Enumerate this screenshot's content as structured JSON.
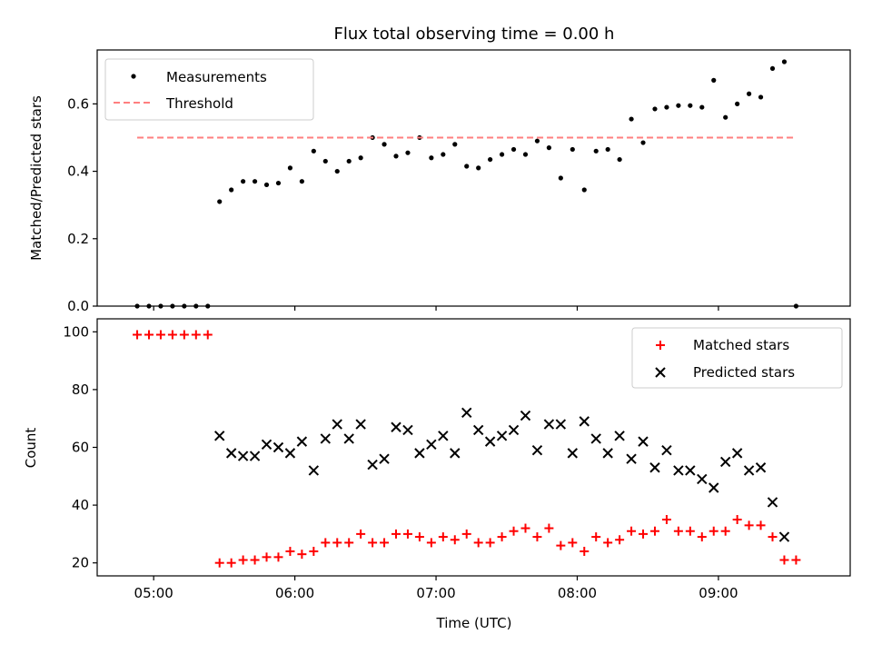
{
  "chart_data": [
    {
      "type": "scatter",
      "title": "Flux total observing time = 0.00 h",
      "xlabel": "",
      "ylabel": "Matched/Predicted stars",
      "ylim": [
        0,
        0.76
      ],
      "yticks": [
        0.0,
        0.2,
        0.4,
        0.6
      ],
      "ytick_labels": [
        "0.0",
        "0.2",
        "0.4",
        "0.6"
      ],
      "xlim": [
        "04:36",
        "09:56"
      ],
      "xticks": [
        "05:00",
        "06:00",
        "07:00",
        "08:00",
        "09:00"
      ],
      "legend_position": "upper-left",
      "grid": false,
      "series": [
        {
          "name": "Measurements",
          "marker": "dot",
          "color": "#000000",
          "x": [
            "04:53",
            "04:58",
            "05:03",
            "05:08",
            "05:13",
            "05:18",
            "05:23",
            "05:28",
            "05:33",
            "05:38",
            "05:43",
            "05:48",
            "05:53",
            "05:58",
            "06:03",
            "06:08",
            "06:13",
            "06:18",
            "06:23",
            "06:28",
            "06:33",
            "06:38",
            "06:43",
            "06:48",
            "06:53",
            "06:58",
            "07:03",
            "07:08",
            "07:13",
            "07:18",
            "07:23",
            "07:28",
            "07:33",
            "07:38",
            "07:43",
            "07:48",
            "07:53",
            "07:58",
            "08:03",
            "08:08",
            "08:13",
            "08:18",
            "08:23",
            "08:28",
            "08:33",
            "08:38",
            "08:43",
            "08:48",
            "08:53",
            "08:58",
            "09:03",
            "09:08",
            "09:13",
            "09:18",
            "09:23",
            "09:28",
            "09:33"
          ],
          "y": [
            0.0,
            0.0,
            0.0,
            0.0,
            0.0,
            0.0,
            0.0,
            0.31,
            0.345,
            0.37,
            0.37,
            0.36,
            0.365,
            0.41,
            0.37,
            0.46,
            0.43,
            0.4,
            0.43,
            0.44,
            0.5,
            0.48,
            0.445,
            0.455,
            0.5,
            0.44,
            0.45,
            0.48,
            0.415,
            0.41,
            0.435,
            0.45,
            0.465,
            0.45,
            0.49,
            0.47,
            0.38,
            0.465,
            0.345,
            0.46,
            0.465,
            0.435,
            0.555,
            0.485,
            0.585,
            0.59,
            0.595,
            0.595,
            0.59,
            0.67,
            0.56,
            0.6,
            0.63,
            0.62,
            0.705,
            0.725,
            0.0
          ]
        },
        {
          "name": "Threshold",
          "marker": "dashed-line",
          "color": "#ff7f7f",
          "x": [
            "04:53",
            "09:33"
          ],
          "y": [
            0.5,
            0.5
          ]
        }
      ]
    },
    {
      "type": "scatter",
      "title": "",
      "xlabel": "Time (UTC)",
      "ylabel": "Count",
      "ylim": [
        15.5,
        104.5
      ],
      "yticks": [
        20,
        40,
        60,
        80,
        100
      ],
      "ytick_labels": [
        "20",
        "40",
        "60",
        "80",
        "100"
      ],
      "xlim": [
        "04:36",
        "09:56"
      ],
      "xticks": [
        "05:00",
        "06:00",
        "07:00",
        "08:00",
        "09:00"
      ],
      "xtick_labels": [
        "05:00",
        "06:00",
        "07:00",
        "08:00",
        "09:00"
      ],
      "legend_position": "upper-right",
      "grid": false,
      "series": [
        {
          "name": "Matched stars",
          "marker": "plus",
          "color": "#ff0000",
          "x": [
            "04:53",
            "04:58",
            "05:03",
            "05:08",
            "05:13",
            "05:18",
            "05:23",
            "05:28",
            "05:33",
            "05:38",
            "05:43",
            "05:48",
            "05:53",
            "05:58",
            "06:03",
            "06:08",
            "06:13",
            "06:18",
            "06:23",
            "06:28",
            "06:33",
            "06:38",
            "06:43",
            "06:48",
            "06:53",
            "06:58",
            "07:03",
            "07:08",
            "07:13",
            "07:18",
            "07:23",
            "07:28",
            "07:33",
            "07:38",
            "07:43",
            "07:48",
            "07:53",
            "07:58",
            "08:03",
            "08:08",
            "08:13",
            "08:18",
            "08:23",
            "08:28",
            "08:33",
            "08:38",
            "08:43",
            "08:48",
            "08:53",
            "08:58",
            "09:03",
            "09:08",
            "09:13",
            "09:18",
            "09:23",
            "09:28",
            "09:33"
          ],
          "y": [
            99,
            99,
            99,
            99,
            99,
            99,
            99,
            20,
            20,
            21,
            21,
            22,
            22,
            24,
            23,
            24,
            27,
            27,
            27,
            30,
            27,
            27,
            30,
            30,
            29,
            27,
            29,
            28,
            30,
            27,
            27,
            29,
            31,
            32,
            29,
            32,
            26,
            27,
            24,
            29,
            27,
            28,
            31,
            30,
            31,
            35,
            31,
            31,
            29,
            31,
            31,
            35,
            33,
            33,
            29,
            21,
            21
          ]
        },
        {
          "name": "Predicted stars",
          "marker": "x",
          "color": "#000000",
          "x": [
            "05:28",
            "05:33",
            "05:38",
            "05:43",
            "05:48",
            "05:53",
            "05:58",
            "06:03",
            "06:08",
            "06:13",
            "06:18",
            "06:23",
            "06:28",
            "06:33",
            "06:38",
            "06:43",
            "06:48",
            "06:53",
            "06:58",
            "07:03",
            "07:08",
            "07:13",
            "07:18",
            "07:23",
            "07:28",
            "07:33",
            "07:38",
            "07:43",
            "07:48",
            "07:53",
            "07:58",
            "08:03",
            "08:08",
            "08:13",
            "08:18",
            "08:23",
            "08:28",
            "08:33",
            "08:38",
            "08:43",
            "08:48",
            "08:53",
            "08:58",
            "09:03",
            "09:08",
            "09:13",
            "09:18",
            "09:23",
            "09:28"
          ],
          "y": [
            64,
            58,
            57,
            57,
            61,
            60,
            58,
            62,
            52,
            63,
            68,
            63,
            68,
            54,
            56,
            67,
            66,
            58,
            61,
            64,
            58,
            72,
            66,
            62,
            64,
            66,
            71,
            59,
            68,
            68,
            58,
            69,
            63,
            58,
            64,
            56,
            62,
            53,
            59,
            52,
            52,
            49,
            46,
            55,
            58,
            52,
            53,
            41,
            29
          ]
        }
      ]
    }
  ]
}
